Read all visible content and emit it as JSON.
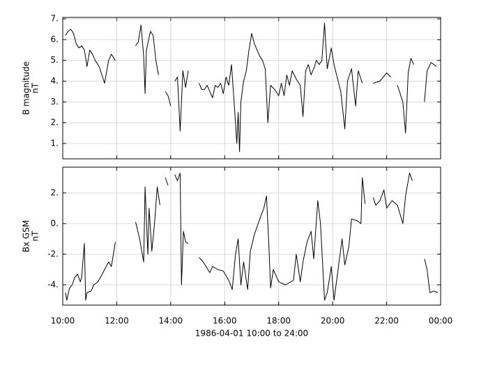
{
  "chart_data": [
    {
      "type": "line",
      "ylabel": [
        "B magnitude",
        "nT"
      ],
      "color": "#000000",
      "grid": true,
      "xlim": [
        10,
        24
      ],
      "xticks": [
        10,
        12,
        14,
        16,
        18,
        20,
        22,
        24
      ],
      "ylim": [
        0.26,
        7.07
      ],
      "yticks": [
        {
          "value": 1,
          "label": "1."
        },
        {
          "value": 2,
          "label": "2."
        },
        {
          "value": 3,
          "label": "3."
        },
        {
          "value": 4,
          "label": "4."
        },
        {
          "value": 5,
          "label": "5."
        },
        {
          "value": 6,
          "label": "6."
        },
        {
          "value": 7,
          "label": "7."
        }
      ],
      "x": [
        10.1,
        10.2,
        10.3,
        10.4,
        10.5,
        10.6,
        10.7,
        10.8,
        10.9,
        11.0,
        11.1,
        11.2,
        11.35,
        11.55,
        11.7,
        11.8,
        11.95,
        12.3,
        12.7,
        12.8,
        12.9,
        13.0,
        13.05,
        13.1,
        13.25,
        13.35,
        13.45,
        13.55,
        13.7,
        13.8,
        13.9,
        14.0,
        14.1,
        14.15,
        14.25,
        14.35,
        14.45,
        14.55,
        14.65,
        14.8,
        15.05,
        15.15,
        15.25,
        15.35,
        15.45,
        15.55,
        15.65,
        15.75,
        15.85,
        15.95,
        16.05,
        16.15,
        16.25,
        16.35,
        16.45,
        16.5,
        16.55,
        16.6,
        16.7,
        16.8,
        16.9,
        17.0,
        17.1,
        17.2,
        17.3,
        17.4,
        17.5,
        17.6,
        17.7,
        17.85,
        18.0,
        18.1,
        18.2,
        18.3,
        18.4,
        18.5,
        18.65,
        18.8,
        18.9,
        19.0,
        19.1,
        19.2,
        19.3,
        19.4,
        19.5,
        19.6,
        19.7,
        19.8,
        19.95,
        20.05,
        20.3,
        20.45,
        20.55,
        20.7,
        20.85,
        20.95,
        21.1,
        21.3,
        21.5,
        21.75,
        22.0,
        22.15,
        22.25,
        22.4,
        22.6,
        22.7,
        22.8,
        22.9,
        23.0,
        23.2,
        23.4,
        23.5,
        23.65,
        23.85
      ],
      "values": [
        6.2,
        6.4,
        6.5,
        6.3,
        5.8,
        5.6,
        5.7,
        5.5,
        4.7,
        5.5,
        5.3,
        5.0,
        4.7,
        3.9,
        5.0,
        5.3,
        5.0,
        null,
        5.7,
        5.9,
        6.7,
        5.2,
        3.4,
        5.5,
        6.4,
        6.2,
        5.0,
        4.3,
        null,
        3.5,
        3.3,
        2.8,
        null,
        4.0,
        4.2,
        1.6,
        4.5,
        3.7,
        4.5,
        null,
        3.9,
        3.6,
        3.6,
        3.8,
        3.5,
        3.2,
        3.8,
        3.7,
        3.9,
        3.4,
        4.2,
        3.8,
        4.8,
        3.0,
        1.0,
        2.5,
        0.6,
        3.0,
        4.0,
        4.5,
        5.5,
        6.3,
        5.8,
        5.5,
        5.2,
        5.0,
        4.6,
        2.0,
        3.8,
        3.6,
        3.3,
        3.9,
        3.3,
        4.3,
        3.8,
        4.5,
        4.1,
        3.8,
        2.3,
        4.5,
        4.8,
        4.3,
        4.6,
        5.0,
        4.8,
        5.0,
        6.8,
        4.6,
        5.6,
        4.8,
        3.5,
        1.7,
        4.0,
        4.6,
        2.8,
        4.5,
        3.9,
        null,
        3.9,
        4.0,
        4.4,
        4.2,
        null,
        3.8,
        3.0,
        1.5,
        4.4,
        5.1,
        4.8,
        null,
        3.0,
        4.5,
        4.9,
        4.7
      ]
    },
    {
      "type": "line",
      "ylabel": [
        "Bx GSM",
        "nT"
      ],
      "color": "#000000",
      "grid": true,
      "xlabel": "1986-04-01 10:00 to 24:00",
      "xlim": [
        10,
        24
      ],
      "xticks": [
        {
          "value": 10,
          "label": "10:00"
        },
        {
          "value": 12,
          "label": "12:00"
        },
        {
          "value": 14,
          "label": "14:00"
        },
        {
          "value": 16,
          "label": "16:00"
        },
        {
          "value": 18,
          "label": "18:00"
        },
        {
          "value": 20,
          "label": "20:00"
        },
        {
          "value": 22,
          "label": "22:00"
        },
        {
          "value": 24,
          "label": "00:00"
        }
      ],
      "ylim": [
        -5.32,
        3.68
      ],
      "yticks": [
        {
          "value": -4,
          "label": "-4."
        },
        {
          "value": -2,
          "label": "-2."
        },
        {
          "value": 0,
          "label": "0."
        },
        {
          "value": 2,
          "label": "2."
        }
      ],
      "x": [
        10.1,
        10.15,
        10.25,
        10.35,
        10.45,
        10.55,
        10.65,
        10.7,
        10.8,
        10.85,
        10.9,
        11.05,
        11.15,
        11.3,
        11.4,
        11.55,
        11.7,
        11.8,
        11.95,
        12.3,
        12.7,
        12.85,
        13.0,
        13.05,
        13.15,
        13.2,
        13.3,
        13.4,
        13.5,
        13.6,
        13.7,
        13.8,
        13.9,
        14.05,
        14.15,
        14.25,
        14.35,
        14.4,
        14.47,
        14.55,
        14.65,
        14.8,
        15.05,
        15.2,
        15.45,
        15.55,
        15.75,
        15.95,
        16.15,
        16.28,
        16.4,
        16.5,
        16.6,
        16.7,
        16.85,
        16.95,
        17.1,
        17.3,
        17.45,
        17.55,
        17.65,
        17.7,
        17.8,
        18.0,
        18.25,
        18.55,
        18.65,
        18.8,
        18.9,
        19.05,
        19.2,
        19.3,
        19.45,
        19.55,
        19.7,
        19.8,
        19.95,
        20.05,
        20.2,
        20.35,
        20.45,
        20.6,
        20.7,
        20.9,
        21.05,
        21.1,
        21.2,
        21.3,
        21.5,
        21.6,
        21.75,
        21.9,
        22.0,
        22.2,
        22.4,
        22.6,
        22.7,
        22.85,
        22.95,
        23.2,
        23.4,
        23.5,
        23.6,
        23.75,
        23.9
      ],
      "values": [
        -4.5,
        -5.0,
        -4.2,
        -4.0,
        -3.5,
        -3.3,
        -3.8,
        -3.5,
        -1.3,
        -5.0,
        -4.5,
        -4.4,
        -4.0,
        -3.8,
        -3.5,
        -3.0,
        -2.5,
        -2.8,
        -1.2,
        null,
        0.1,
        -1.0,
        -2.5,
        2.4,
        -2.0,
        1.0,
        -1.8,
        0.0,
        2.4,
        1.2,
        null,
        3.0,
        2.5,
        null,
        3.2,
        2.8,
        3.3,
        -4.0,
        -0.5,
        -1.2,
        -1.3,
        null,
        -2.2,
        -2.5,
        -3.2,
        -2.8,
        -3.0,
        -3.1,
        -3.7,
        -4.3,
        -2.0,
        -1.0,
        -4.0,
        -2.5,
        -4.3,
        -1.8,
        -0.7,
        0.3,
        1.0,
        1.8,
        -2.0,
        -4.2,
        -3.0,
        -3.8,
        -4.0,
        -3.7,
        -2.0,
        -3.8,
        -2.5,
        -1.2,
        -0.5,
        -2.3,
        1.5,
        0.0,
        -5.0,
        -4.5,
        -2.8,
        -5.0,
        -3.0,
        -1.0,
        -2.7,
        -1.5,
        0.3,
        0.2,
        0.0,
        3.0,
        1.3,
        null,
        1.7,
        1.2,
        1.5,
        2.2,
        1.0,
        1.5,
        1.2,
        0.0,
        1.8,
        3.3,
        2.8,
        null,
        -2.3,
        -3.0,
        -4.5,
        -4.4,
        -4.5
      ]
    }
  ]
}
